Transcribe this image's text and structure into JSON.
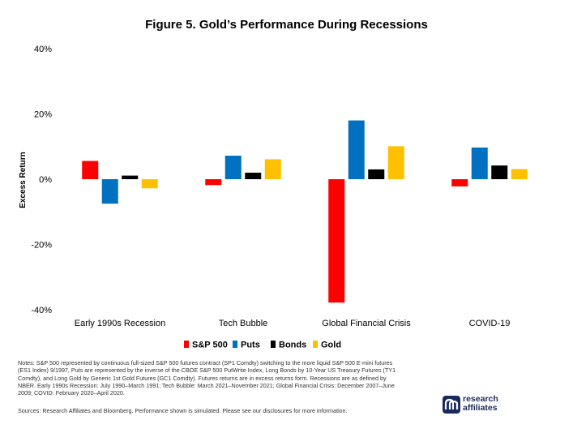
{
  "title": "Figure 5. Gold’s Performance During Recessions",
  "chart_data": {
    "type": "bar",
    "title": "Figure 5. Gold’s Performance During Recessions",
    "ylabel": "Excess Return",
    "xlabel": "",
    "ylim": [
      -40,
      40
    ],
    "yticks": [
      40,
      20,
      0,
      -20,
      -40
    ],
    "ytick_labels": [
      "40%",
      "20%",
      "0%",
      "-20%",
      "-40%"
    ],
    "grid": false,
    "legend_position": "bottom",
    "categories": [
      "Early 1990s Recession",
      "Tech Bubble",
      "Global Financial Crisis",
      "COVID-19"
    ],
    "series": [
      {
        "name": "S&P 500",
        "color": "#ff0000",
        "values": [
          5.6,
          -1.8,
          -37.8,
          -2.2
        ]
      },
      {
        "name": "Puts",
        "color": "#0070c0",
        "values": [
          -7.5,
          7.2,
          18.0,
          9.7
        ]
      },
      {
        "name": "Bonds",
        "color": "#000000",
        "values": [
          1.1,
          2.0,
          3.0,
          4.2
        ]
      },
      {
        "name": "Gold",
        "color": "#ffc000",
        "values": [
          -2.8,
          6.1,
          10.1,
          3.1
        ]
      }
    ]
  },
  "notes": "Notes: S&P 500 represented by continuous full-sized S&P 500 futures contract (SP1 Comdty) switching to the more liquid S&P 500 E-mini futures (ES1 Index) 9/1997, Puts are represented by the inverse of the CBOE S&P 500 PutWrite Index, Long Bonds by 10-Year US Treasury Futures (TY1 Comdty), and Long Gold by Generic 1st Gold Futures (GC1 Comdty). Futures returns are in excess returns form. Recessions are as defined by NBER. Early 1990s Recession: July 1990–March 1991; Tech Bubble: March 2021–November 2021; Global Financial Crisis: December 2007–June 2009; COVID: February 2020–April 2020.",
  "sources": "Sources: Research Affiliates and Bloomberg. Performance shown is simulated. Please see our disclosures for more information.",
  "logo": {
    "line1": "research",
    "line2": "affiliates",
    "color": "#1a2a5a"
  }
}
